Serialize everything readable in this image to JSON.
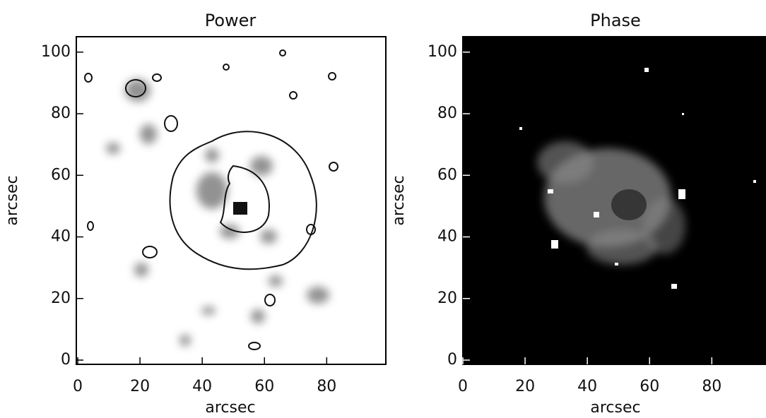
{
  "chart_data": [
    {
      "type": "image",
      "title": "Power",
      "xlabel": "arcsec",
      "ylabel": "arcsec",
      "xlim": [
        0,
        99
      ],
      "ylim": [
        0,
        105
      ],
      "xticks": [
        0,
        20,
        40,
        60,
        80
      ],
      "yticks": [
        0,
        20,
        40,
        60,
        80,
        100
      ]
    },
    {
      "type": "image",
      "title": "Phase",
      "xlabel": "arcsec",
      "ylabel": "arcsec",
      "xlim": [
        0,
        99
      ],
      "ylim": [
        0,
        105
      ],
      "xticks": [
        0,
        20,
        40,
        60,
        80
      ],
      "yticks": [
        0,
        20,
        40,
        60,
        80,
        100
      ]
    }
  ]
}
